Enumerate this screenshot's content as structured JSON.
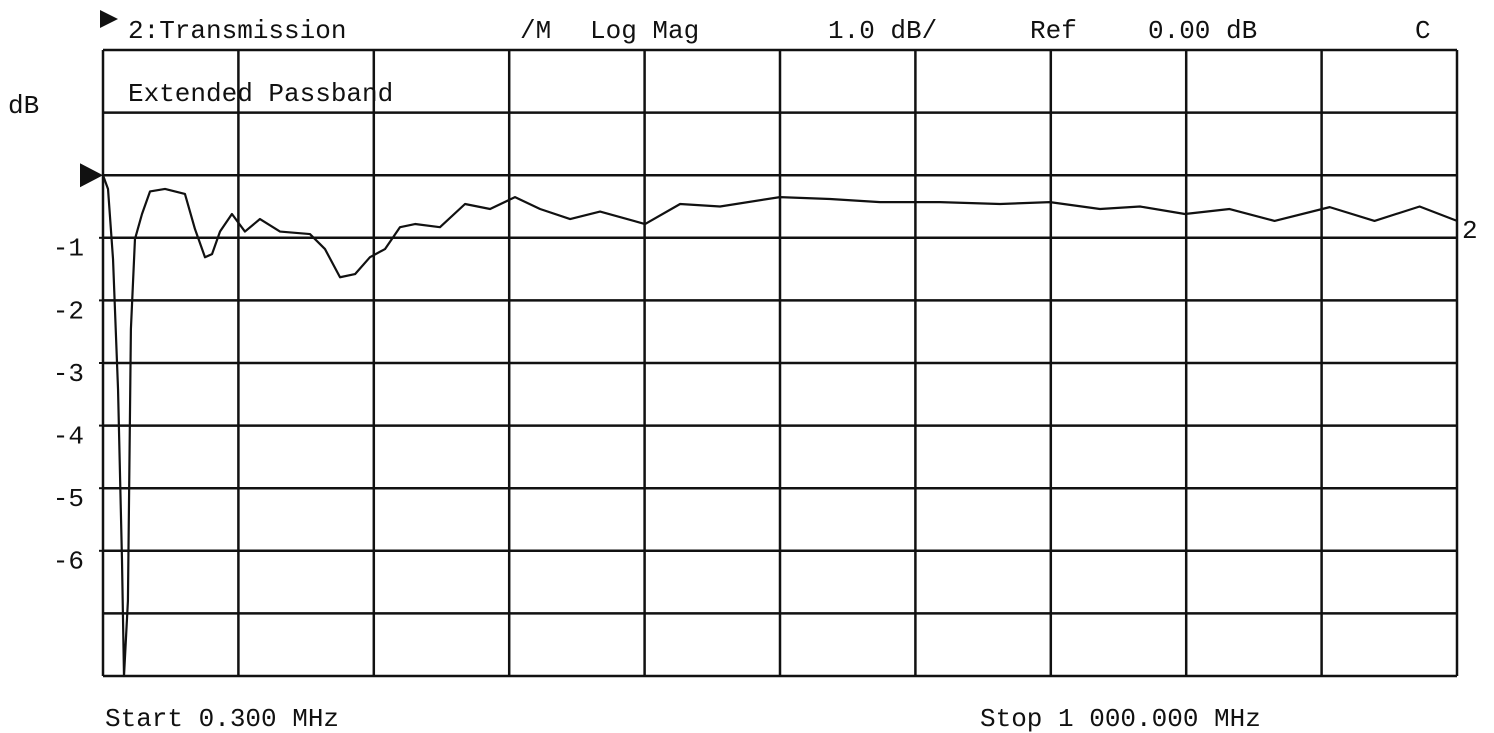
{
  "chart_data": {
    "type": "line",
    "header": [
      "2:Transmission",
      "/M",
      "Log Mag",
      "1.0 dB/",
      "Ref",
      "0.00 dB",
      "C"
    ],
    "title": "Extended Passband",
    "y_label": "dB",
    "start_label": "Start 0.300 MHz",
    "stop_label": "Stop 1 000.000 MHz",
    "xlim": [
      0.3,
      1000
    ],
    "ylim": [
      -8,
      2
    ],
    "yticks": [
      -1,
      -2,
      -3,
      -4,
      -5,
      -6
    ],
    "grid": true,
    "x": [
      0.3,
      4.0,
      7.7,
      11.4,
      14.3,
      15.8,
      18.7,
      20.9,
      23.9,
      29.1,
      35.0,
      46.1,
      60.8,
      68.2,
      75.6,
      80.8,
      86.7,
      95.5,
      105.1,
      116.2,
      131.0,
      153.1,
      164.2,
      175.3,
      186.4,
      197.4,
      208.5,
      219.6,
      230.7,
      249.1,
      267.6,
      286.1,
      304.5,
      323.0,
      345.2,
      367.3,
      400.5,
      426.4,
      455.9,
      500.1,
      537.1,
      574.0,
      618.3,
      662.6,
      699.5,
      736.4,
      765.9,
      799.1,
      832.1,
      865.3,
      906.0,
      939.1,
      972.4,
      1000
    ],
    "series": [
      {
        "name": "2",
        "color": "#111111",
        "values": [
          0,
          -0.22,
          -1.34,
          -3.42,
          -6.13,
          -8,
          -6.8,
          -2.46,
          -1.02,
          -0.62,
          -0.26,
          -0.22,
          -0.3,
          -0.86,
          -1.31,
          -1.26,
          -0.9,
          -0.62,
          -0.9,
          -0.7,
          -0.9,
          -0.94,
          -1.18,
          -1.63,
          -1.58,
          -1.31,
          -1.18,
          -0.83,
          -0.78,
          -0.83,
          -0.46,
          -0.54,
          -0.35,
          -0.54,
          -0.7,
          -0.58,
          -0.78,
          -0.46,
          -0.5,
          -0.35,
          -0.38,
          -0.43,
          -0.43,
          -0.46,
          -0.43,
          -0.54,
          -0.5,
          -0.62,
          -0.54,
          -0.73,
          -0.51,
          -0.73,
          -0.5,
          -0.73
        ]
      }
    ]
  }
}
